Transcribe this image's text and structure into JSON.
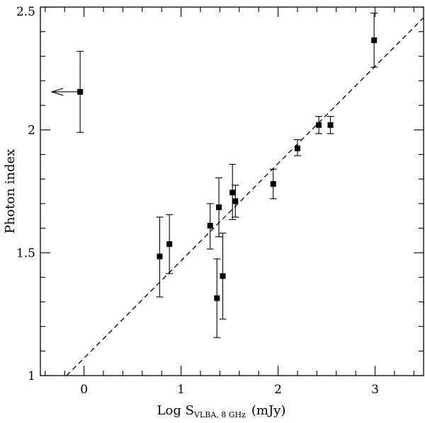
{
  "chart_data": {
    "type": "scatter",
    "xlabel_prefix": "Log S",
    "xlabel_subscript": "VLBA, 8 GHz",
    "xlabel_suffix": "(mJy)",
    "ylabel": "Photon index",
    "xlim": [
      -0.45,
      3.5
    ],
    "ylim": [
      1.0,
      2.5
    ],
    "x_ticks": [
      {
        "value": 0,
        "label": "0"
      },
      {
        "value": 1,
        "label": "1"
      },
      {
        "value": 2,
        "label": "2"
      },
      {
        "value": 3,
        "label": "3"
      }
    ],
    "y_ticks": [
      {
        "value": 1.0,
        "label": "1"
      },
      {
        "value": 1.5,
        "label": "1.5"
      },
      {
        "value": 2.0,
        "label": "2"
      },
      {
        "value": 2.5,
        "label": "2.5"
      }
    ],
    "x_minor_step": 0.2,
    "y_minor_step": 0.1,
    "points": [
      {
        "x": -0.04,
        "y": 2.155,
        "ylo": 1.99,
        "yhi": 2.32,
        "upper_limit_x": true
      },
      {
        "x": 0.78,
        "y": 1.485,
        "ylo": 1.32,
        "yhi": 1.645
      },
      {
        "x": 0.88,
        "y": 1.535,
        "ylo": 1.415,
        "yhi": 1.655
      },
      {
        "x": 1.3,
        "y": 1.61,
        "ylo": 1.515,
        "yhi": 1.7
      },
      {
        "x": 1.37,
        "y": 1.315,
        "ylo": 1.155,
        "yhi": 1.475
      },
      {
        "x": 1.39,
        "y": 1.685,
        "ylo": 1.565,
        "yhi": 1.805
      },
      {
        "x": 1.43,
        "y": 1.405,
        "ylo": 1.23,
        "yhi": 1.58
      },
      {
        "x": 1.53,
        "y": 1.745,
        "ylo": 1.635,
        "yhi": 1.86
      },
      {
        "x": 1.56,
        "y": 1.71,
        "ylo": 1.645,
        "yhi": 1.775
      },
      {
        "x": 1.95,
        "y": 1.78,
        "ylo": 1.72,
        "yhi": 1.84
      },
      {
        "x": 2.2,
        "y": 1.925,
        "ylo": 1.895,
        "yhi": 1.96
      },
      {
        "x": 2.42,
        "y": 2.02,
        "ylo": 1.985,
        "yhi": 2.055
      },
      {
        "x": 2.54,
        "y": 2.02,
        "ylo": 1.985,
        "yhi": 2.055
      },
      {
        "x": 2.99,
        "y": 2.365,
        "ylo": 2.255,
        "yhi": 2.475
      }
    ],
    "fit_line": {
      "style": "dashed",
      "x": [
        -0.18,
        3.5
      ],
      "y": [
        1.0,
        2.457
      ]
    },
    "grid": false,
    "legend": "none"
  }
}
